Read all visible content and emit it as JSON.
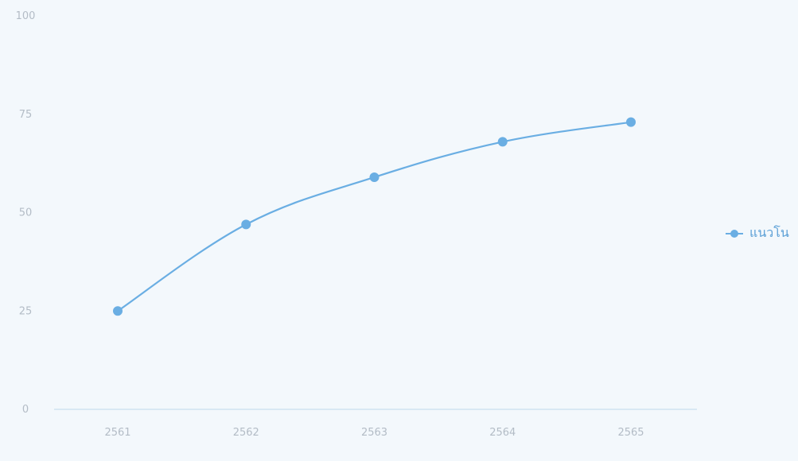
{
  "chart_data": {
    "type": "line",
    "categories": [
      "2561",
      "2562",
      "2563",
      "2564",
      "2565"
    ],
    "series": [
      {
        "name": "แนวโน",
        "values": [
          25,
          47,
          59,
          68,
          73
        ],
        "color": "#6aaee3"
      }
    ],
    "y_ticks": [
      "0",
      "25",
      "50",
      "75",
      "100"
    ],
    "ylim": [
      0,
      100
    ],
    "grid": false,
    "legend": "right",
    "axis_color": "#cfe3f2",
    "tick_color": "#b3bcc6"
  }
}
